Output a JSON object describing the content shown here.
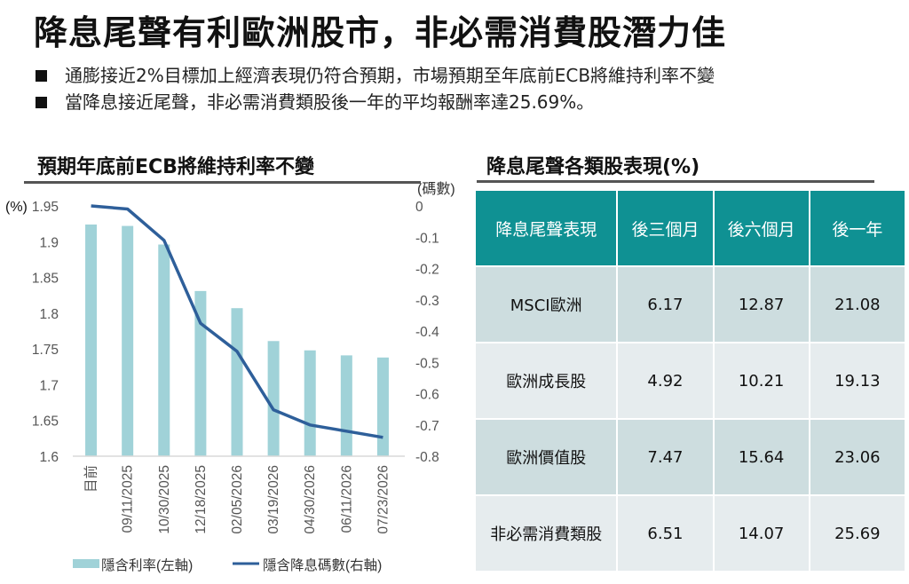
{
  "title": "降息尾聲有利歐洲股市，非必需消費股潛力佳",
  "bullets": [
    "通膨接近2%目標加上經濟表現仍符合預期，市場預期至年底前ECB將維持利率不變",
    "當降息接近尾聲，非必需消費類股後一年的平均報酬率達25.69%。"
  ],
  "chart_section_title": "預期年底前ECB將維持利率不變",
  "table_section_title": "降息尾聲各類股表現(%)",
  "chart_data": {
    "type": "bar+line",
    "title": "預期年底前ECB將維持利率不變",
    "categories": [
      "目前",
      "09/11/2025",
      "10/30/2025",
      "12/18/2025",
      "02/05/2026",
      "03/19/2026",
      "04/30/2026",
      "06/11/2026",
      "07/23/2026"
    ],
    "series": [
      {
        "name": "隱含利率(左軸)",
        "type": "bar",
        "axis": "left",
        "color": "#a0d2d8",
        "values": [
          1.924,
          1.922,
          1.896,
          1.831,
          1.807,
          1.761,
          1.748,
          1.741,
          1.738
        ]
      },
      {
        "name": "隱含降息碼數(右軸)",
        "type": "line",
        "axis": "right",
        "color": "#2e5f9a",
        "values": [
          0.0,
          -0.01,
          -0.11,
          -0.375,
          -0.465,
          -0.652,
          -0.7,
          -0.72,
          -0.74
        ]
      }
    ],
    "left_axis": {
      "label": "(%)",
      "ylim": [
        1.6,
        1.95
      ],
      "ticks": [
        "1.95",
        "1.9",
        "1.85",
        "1.8",
        "1.75",
        "1.7",
        "1.65",
        "1.6"
      ],
      "tick_values": [
        1.95,
        1.9,
        1.85,
        1.8,
        1.75,
        1.7,
        1.65,
        1.6
      ]
    },
    "right_axis": {
      "label": "(碼數)",
      "ylim": [
        -0.8,
        0
      ],
      "ticks": [
        "0",
        "-0.1",
        "-0.2",
        "-0.3",
        "-0.4",
        "-0.5",
        "-0.6",
        "-0.7",
        "-0.8"
      ],
      "tick_values": [
        0,
        -0.1,
        -0.2,
        -0.3,
        -0.4,
        -0.5,
        -0.6,
        -0.7,
        -0.8
      ]
    },
    "legend_position": "bottom",
    "grid": false
  },
  "table": {
    "headers": [
      "降息尾聲表現",
      "後三個月",
      "後六個月",
      "後一年"
    ],
    "rows": [
      [
        "MSCI歐洲",
        "6.17",
        "12.87",
        "21.08"
      ],
      [
        "歐洲成長股",
        "4.92",
        "10.21",
        "19.13"
      ],
      [
        "歐洲價值股",
        "7.47",
        "15.64",
        "23.06"
      ],
      [
        "非必需消費類股",
        "6.51",
        "14.07",
        "25.69"
      ]
    ]
  }
}
